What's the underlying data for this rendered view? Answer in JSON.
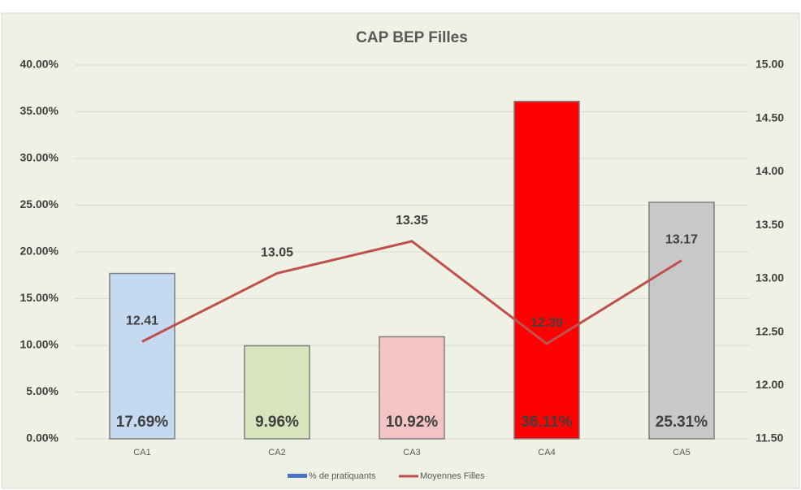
{
  "chart_data": {
    "type": "bar",
    "title": "CAP BEP Filles",
    "categories": [
      "CA1",
      "CA2",
      "CA3",
      "CA4",
      "CA5"
    ],
    "series": [
      {
        "name": "% de pratiquants",
        "color": "#4472c4",
        "colors": [
          "#c5d9f1",
          "#d7e4bc",
          "#f2c4c4",
          "#ff0000",
          "#c8c8c8"
        ],
        "values": [
          17.69,
          9.96,
          10.92,
          36.11,
          25.31
        ],
        "value_labels": [
          "17.69%",
          "9.96%",
          "10.92%",
          "36.11%",
          "25.31%"
        ]
      },
      {
        "name": "Moyennes Filles",
        "type": "line",
        "axis": "y2",
        "color": "#c0504d",
        "values": [
          12.41,
          13.05,
          13.35,
          12.39,
          13.17
        ],
        "value_labels": [
          "12.41",
          "13.05",
          "13.35",
          "12.39",
          "13.17"
        ]
      }
    ],
    "ylim": [
      0,
      40
    ],
    "yticks": [
      {
        "value": 0,
        "label": "0.00%"
      },
      {
        "value": 5,
        "label": "5.00%"
      },
      {
        "value": 10,
        "label": "10.00%"
      },
      {
        "value": 15,
        "label": "15.00%"
      },
      {
        "value": 20,
        "label": "20.00%"
      },
      {
        "value": 25,
        "label": "25.00%"
      },
      {
        "value": 30,
        "label": "30.00%"
      },
      {
        "value": 35,
        "label": "35.00%"
      },
      {
        "value": 40,
        "label": "40.00%"
      }
    ],
    "y2lim": [
      11.5,
      15
    ],
    "y2ticks": [
      {
        "value": 11.5,
        "label": "11.50"
      },
      {
        "value": 12,
        "label": "12.00"
      },
      {
        "value": 12.5,
        "label": "12.50"
      },
      {
        "value": 13,
        "label": "13.00"
      },
      {
        "value": 13.5,
        "label": "13.50"
      },
      {
        "value": 14,
        "label": "14.00"
      },
      {
        "value": 14.5,
        "label": "14.50"
      },
      {
        "value": 15,
        "label": "15.00"
      }
    ],
    "grid": true,
    "legend": "bottom"
  }
}
